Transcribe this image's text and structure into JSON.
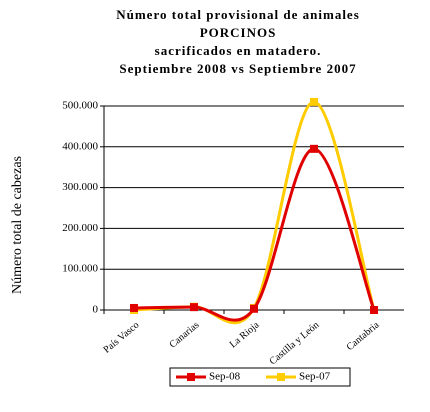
{
  "chart_data": {
    "type": "line",
    "title": [
      "Número total provisional de animales",
      "PORCINOS",
      "sacrificados en matadero.",
      "Septiembre 2008 vs Septiembre 2007"
    ],
    "y_label": "Número total de cabezas",
    "categories": [
      "País Vasco",
      "Canarias",
      "La Rioja",
      "Castilla y León",
      "Cantabria"
    ],
    "series": [
      {
        "name": "Sep-08",
        "color": "#e00000",
        "values": [
          5000,
          7000,
          3000,
          395000,
          0
        ]
      },
      {
        "name": "Sep-07",
        "color": "#ffcc00",
        "values": [
          0,
          8000,
          5000,
          510000,
          0
        ]
      }
    ],
    "ylim": [
      0,
      500000
    ],
    "yticks": [
      0,
      {
        "value": 100000,
        "label": "100.000"
      },
      {
        "value": 200000,
        "label": "200.000"
      },
      {
        "value": 300000,
        "label": "300.000"
      },
      {
        "value": 400000,
        "label": "400.000"
      },
      {
        "value": 500000,
        "label": "500.000"
      }
    ],
    "grid": true
  }
}
